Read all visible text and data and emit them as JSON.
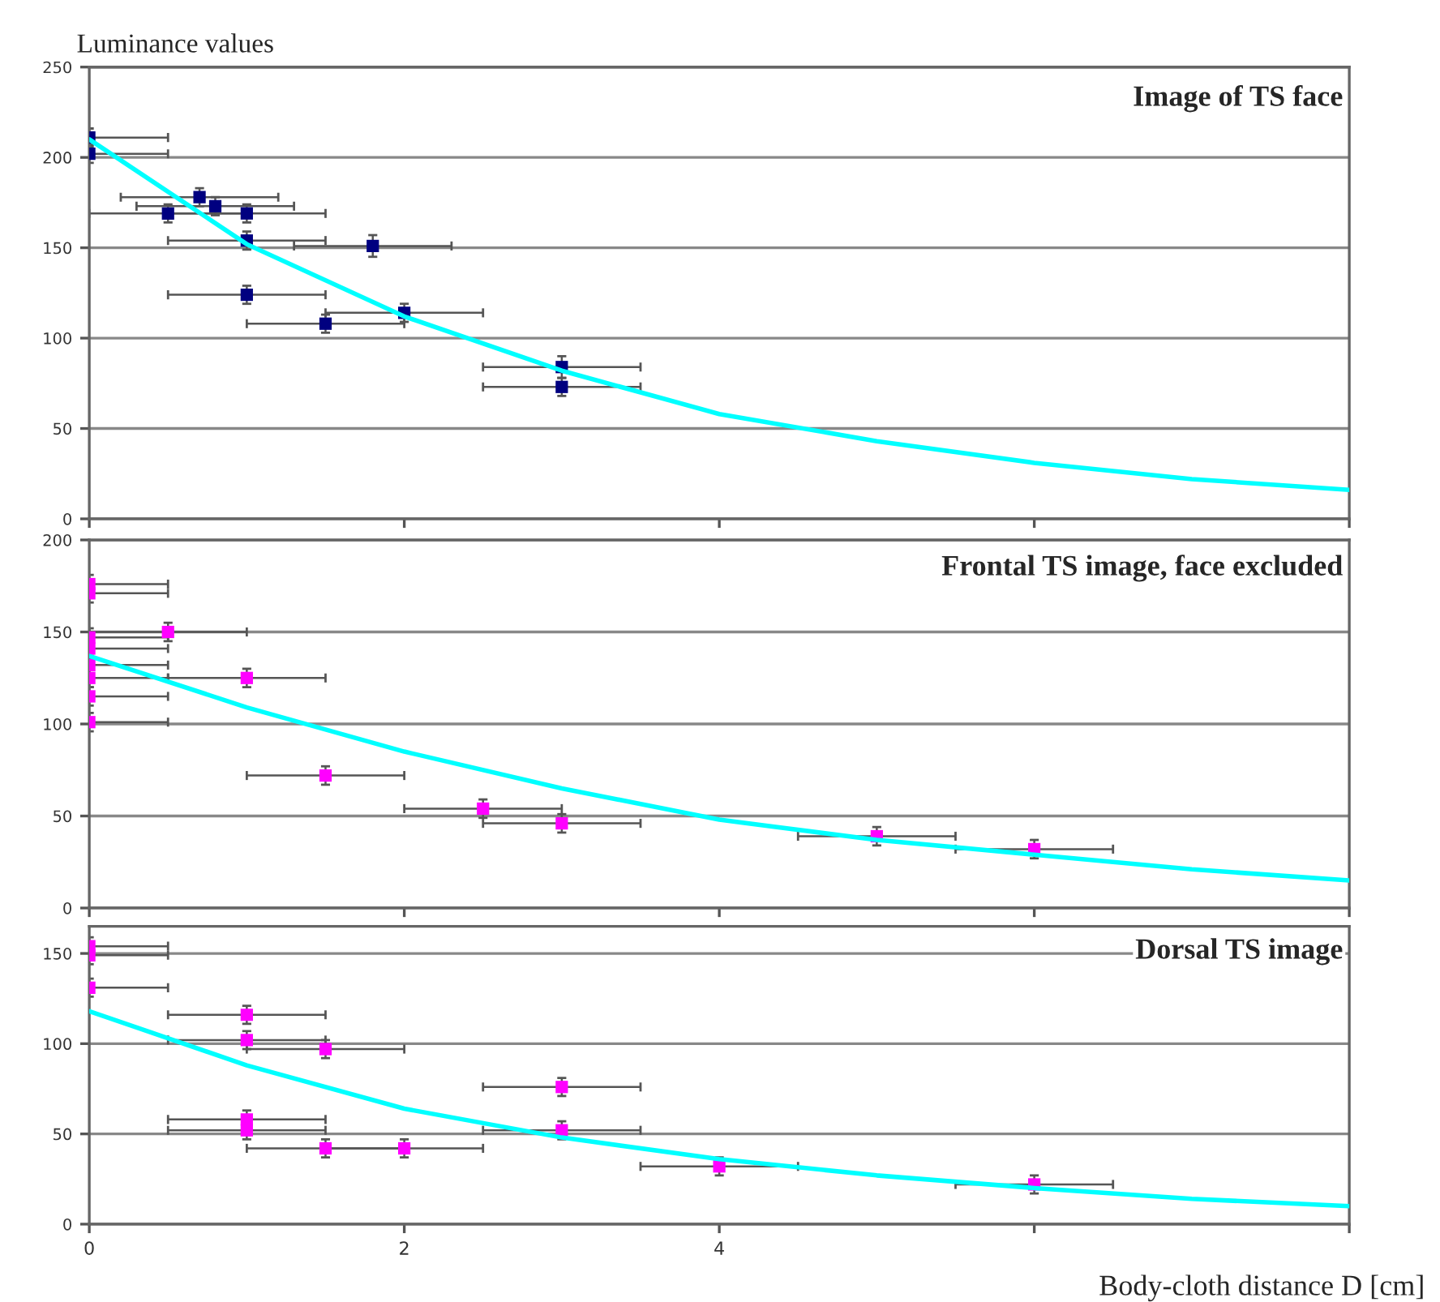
{
  "chart_data": [
    {
      "type": "scatter",
      "title": "Image of TS face",
      "ylabel": "Luminance values",
      "xlim": [
        0,
        8
      ],
      "xticks": [
        0,
        2,
        4,
        6,
        8
      ],
      "ylim": [
        0,
        250
      ],
      "yticks": [
        0,
        50,
        100,
        150,
        200,
        250
      ],
      "grid": "y",
      "tick_labels": "y",
      "series": [
        {
          "type": "scatter",
          "marker": "square",
          "color": "#000080",
          "x": [
            0,
            0,
            0.5,
            0.7,
            0.8,
            1.0,
            1.0,
            1.8,
            1.0,
            1.5,
            2.0,
            3.0,
            3.0
          ],
          "values": [
            211,
            202,
            169,
            178,
            173,
            169,
            154,
            151,
            124,
            108,
            114,
            84,
            73
          ],
          "errors": [
            5,
            5,
            5,
            5,
            5,
            5,
            5,
            6,
            5,
            5,
            5,
            6,
            5
          ],
          "xerrors": [
            0.5,
            0.5,
            0.5,
            0.5,
            0.5,
            0.5,
            0.5,
            0.5,
            0.5,
            0.5,
            0.5,
            0.5,
            0.5
          ]
        },
        {
          "type": "line",
          "marker": "none",
          "color": "#00ffff",
          "x": [
            0,
            1,
            2,
            3,
            4,
            5,
            6,
            7,
            8
          ],
          "values": [
            210,
            152,
            112,
            82,
            58,
            43,
            31,
            22,
            16
          ]
        }
      ]
    },
    {
      "type": "scatter",
      "title": "Frontal TS image, face excluded",
      "xlim": [
        0,
        8
      ],
      "xticks": [
        0,
        2,
        4,
        6,
        8
      ],
      "ylim": [
        0,
        200
      ],
      "yticks": [
        0,
        50,
        100,
        150,
        200
      ],
      "grid": "y",
      "tick_labels": "y",
      "series": [
        {
          "type": "scatter",
          "marker": "square",
          "color": "#ff00ff",
          "x": [
            0,
            0,
            0,
            0,
            0.5,
            0,
            0,
            1.0,
            0,
            0,
            1.5,
            2.5,
            3.0,
            5.0,
            6.0
          ],
          "values": [
            176,
            171,
            147,
            141,
            150,
            132,
            125,
            125,
            115,
            101,
            72,
            54,
            46,
            39,
            32
          ],
          "errors": [
            5,
            5,
            5,
            5,
            5,
            5,
            5,
            5,
            5,
            5,
            5,
            5,
            5,
            5,
            5
          ],
          "xerrors": [
            0.5,
            0.5,
            0.5,
            0.5,
            0.5,
            0.5,
            0.5,
            0.5,
            0.5,
            0.5,
            0.5,
            0.5,
            0.5,
            0.5,
            0.5
          ]
        },
        {
          "type": "line",
          "marker": "none",
          "color": "#00ffff",
          "x": [
            0,
            1,
            2,
            3,
            4,
            5,
            6,
            7,
            8
          ],
          "values": [
            137,
            109,
            85,
            65,
            48,
            37,
            29,
            21,
            15
          ]
        }
      ]
    },
    {
      "type": "scatter",
      "title": "Dorsal TS image",
      "xlabel": "Body-cloth distance D [cm]",
      "xlim": [
        0,
        8
      ],
      "xticks": [
        0,
        2,
        4,
        {
          "value": 6,
          "label": null
        },
        {
          "value": 8,
          "label": null
        }
      ],
      "ylim": [
        0,
        165
      ],
      "yticks": [
        0,
        50,
        100,
        150
      ],
      "grid": "y",
      "series": [
        {
          "type": "scatter",
          "marker": "square",
          "color": "#ff00ff",
          "x": [
            0,
            0,
            0,
            1.0,
            1.0,
            1.5,
            3.0,
            1.0,
            1.0,
            1.5,
            2.0,
            3.0,
            4.0,
            6.0
          ],
          "values": [
            154,
            149,
            131,
            116,
            102,
            97,
            76,
            58,
            52,
            42,
            42,
            52,
            32,
            22
          ],
          "errors": [
            5,
            5,
            5,
            5,
            5,
            5,
            5,
            5,
            5,
            5,
            5,
            5,
            5,
            5
          ],
          "xerrors": [
            0.5,
            0.5,
            0.5,
            0.5,
            0.5,
            0.5,
            0.5,
            0.5,
            0.5,
            0.5,
            0.5,
            0.5,
            0.5,
            0.5
          ]
        },
        {
          "type": "line",
          "marker": "none",
          "color": "#00ffff",
          "x": [
            0,
            1,
            2,
            3,
            4,
            5,
            6,
            7,
            8
          ],
          "values": [
            118,
            88,
            64,
            48,
            36,
            27,
            20,
            14,
            10
          ]
        }
      ]
    }
  ]
}
